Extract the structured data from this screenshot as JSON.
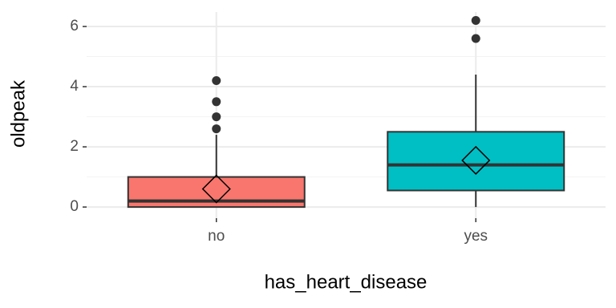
{
  "chart_data": {
    "type": "box",
    "x_label": "has_heart_disease",
    "y_label": "oldpeak",
    "categories": [
      "no",
      "yes"
    ],
    "colors": [
      "#f8766d",
      "#00bfc4"
    ],
    "boxes": [
      {
        "min": 0,
        "q1": 0,
        "median": 0.2,
        "q3": 1.0,
        "max": 2.4,
        "mean": 0.6,
        "outliers": [
          2.6,
          3.0,
          3.5,
          4.2
        ]
      },
      {
        "min": 0,
        "q1": 0.55,
        "median": 1.4,
        "q3": 2.5,
        "max": 4.4,
        "mean": 1.55,
        "outliers": [
          5.6,
          6.2
        ]
      }
    ],
    "ylim": [
      -0.37,
      6.48
    ],
    "yticks": [
      0,
      2,
      4,
      6
    ],
    "minor_yticks": [
      1,
      3,
      5
    ],
    "grid": true
  }
}
